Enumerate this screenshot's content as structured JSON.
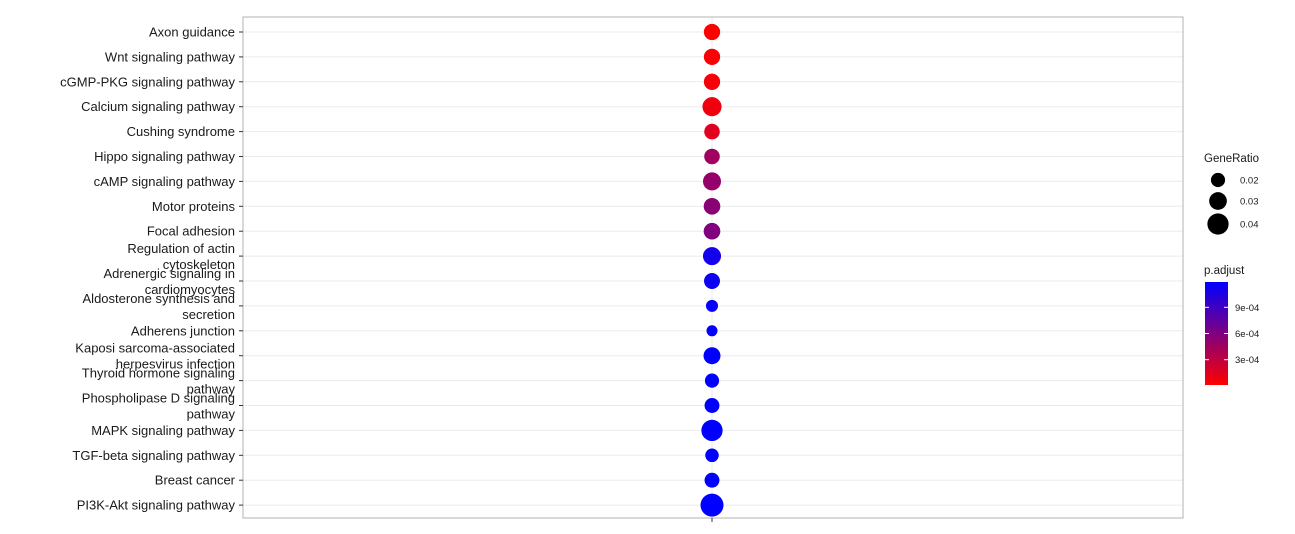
{
  "chart_data": {
    "type": "scatter",
    "categories": [
      "Axon guidance",
      "Wnt signaling pathway",
      "cGMP-PKG signaling pathway",
      "Calcium signaling pathway",
      "Cushing syndrome",
      "Hippo signaling pathway",
      "cAMP signaling pathway",
      "Motor proteins",
      "Focal adhesion",
      "Regulation of actin cytoskeleton",
      "Adrenergic signaling in cardiomyocytes",
      "Aldosterone synthesis and secretion",
      "Adherens junction",
      "Kaposi sarcoma-associated herpesvirus infection",
      "Thyroid hormone signaling pathway",
      "Phospholipase D signaling pathway",
      "MAPK signaling pathway",
      "TGF-beta signaling pathway",
      "Breast cancer",
      "PI3K-Akt signaling pathway"
    ],
    "label_lines": [
      [
        "Axon guidance"
      ],
      [
        "Wnt signaling pathway"
      ],
      [
        "cGMP-PKG signaling pathway"
      ],
      [
        "Calcium signaling pathway"
      ],
      [
        "Cushing syndrome"
      ],
      [
        "Hippo signaling pathway"
      ],
      [
        "cAMP signaling pathway"
      ],
      [
        "Motor proteins"
      ],
      [
        "Focal adhesion"
      ],
      [
        "Regulation of actin",
        "cytoskeleton"
      ],
      [
        "Adrenergic signaling in",
        "cardiomyocytes"
      ],
      [
        "Aldosterone synthesis and",
        "secretion"
      ],
      [
        "Adherens junction"
      ],
      [
        "Kaposi sarcoma-associated",
        "herpesvirus infection"
      ],
      [
        "Thyroid hormone signaling",
        "pathway"
      ],
      [
        "Phospholipase D signaling",
        "pathway"
      ],
      [
        "MAPK signaling pathway"
      ],
      [
        "TGF-beta signaling pathway"
      ],
      [
        "Breast cancer"
      ],
      [
        "PI3K-Akt signaling pathway"
      ]
    ],
    "gene_ratio": [
      0.026,
      0.026,
      0.026,
      0.034,
      0.024,
      0.024,
      0.031,
      0.027,
      0.027,
      0.031,
      0.025,
      0.014,
      0.011,
      0.028,
      0.02,
      0.022,
      0.04,
      0.018,
      0.022,
      0.045
    ],
    "p_adjust": [
      1e-05,
      3e-05,
      5e-05,
      8e-05,
      0.00015,
      0.00045,
      0.0005,
      0.00055,
      0.0006,
      0.0011,
      0.00113,
      0.00117,
      0.00118,
      0.0012,
      0.0012,
      0.0012,
      0.0012,
      0.0012,
      0.0012,
      0.0012
    ],
    "size_legend": {
      "title": "GeneRatio",
      "values": [
        0.02,
        0.03,
        0.04
      ],
      "labels": [
        "0.02",
        "0.03",
        "0.04"
      ]
    },
    "color_legend": {
      "title": "p.adjust",
      "ticks": [
        0.0009,
        0.0006,
        0.0003
      ],
      "labels": [
        "9e-04",
        "6e-04",
        "3e-04"
      ],
      "range": [
        1e-05,
        0.00119
      ],
      "low_color": "#ff0000",
      "high_color": "#0000ff"
    },
    "grid": true,
    "legend_position": "right"
  }
}
